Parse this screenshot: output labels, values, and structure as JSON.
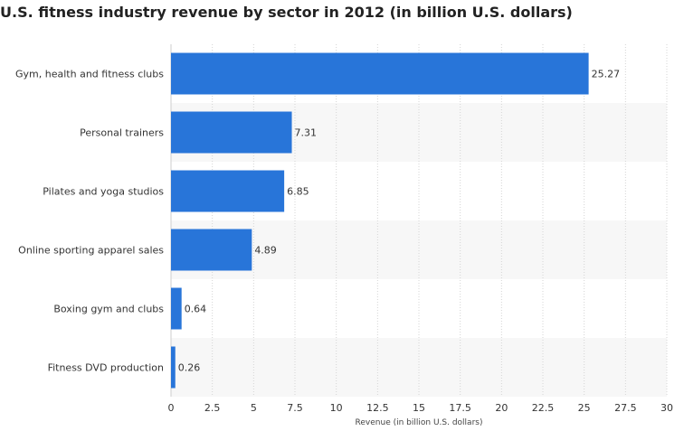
{
  "chart_data": {
    "type": "bar",
    "orientation": "horizontal",
    "title": "U.S. fitness industry revenue by sector in 2012 (in billion U.S. dollars)",
    "xlabel": "Revenue (in billion U.S. dollars)",
    "ylabel": "",
    "categories": [
      "Gym, health and fitness clubs",
      "Personal trainers",
      "Pilates and yoga studios",
      "Online sporting apparel sales",
      "Boxing gym and clubs",
      "Fitness DVD production"
    ],
    "values": [
      25.27,
      7.31,
      6.85,
      4.89,
      0.64,
      0.26
    ],
    "value_labels": [
      "25.27",
      "7.31",
      "6.85",
      "4.89",
      "0.64",
      "0.26"
    ],
    "xlim": [
      0,
      30
    ],
    "ticks": [
      0,
      2.5,
      5,
      7.5,
      10,
      12.5,
      15,
      17.5,
      20,
      22.5,
      25,
      27.5,
      30
    ],
    "tick_labels": [
      "0",
      "2.5",
      "5",
      "7.5",
      "10",
      "12.5",
      "15",
      "17.5",
      "20",
      "22.5",
      "25",
      "27.5",
      "30"
    ],
    "grid": "vertical dashed",
    "colors": {
      "bar": "#2875d9",
      "band": "#f7f7f7",
      "grid": "#d4d4d4",
      "text": "#333333"
    }
  }
}
